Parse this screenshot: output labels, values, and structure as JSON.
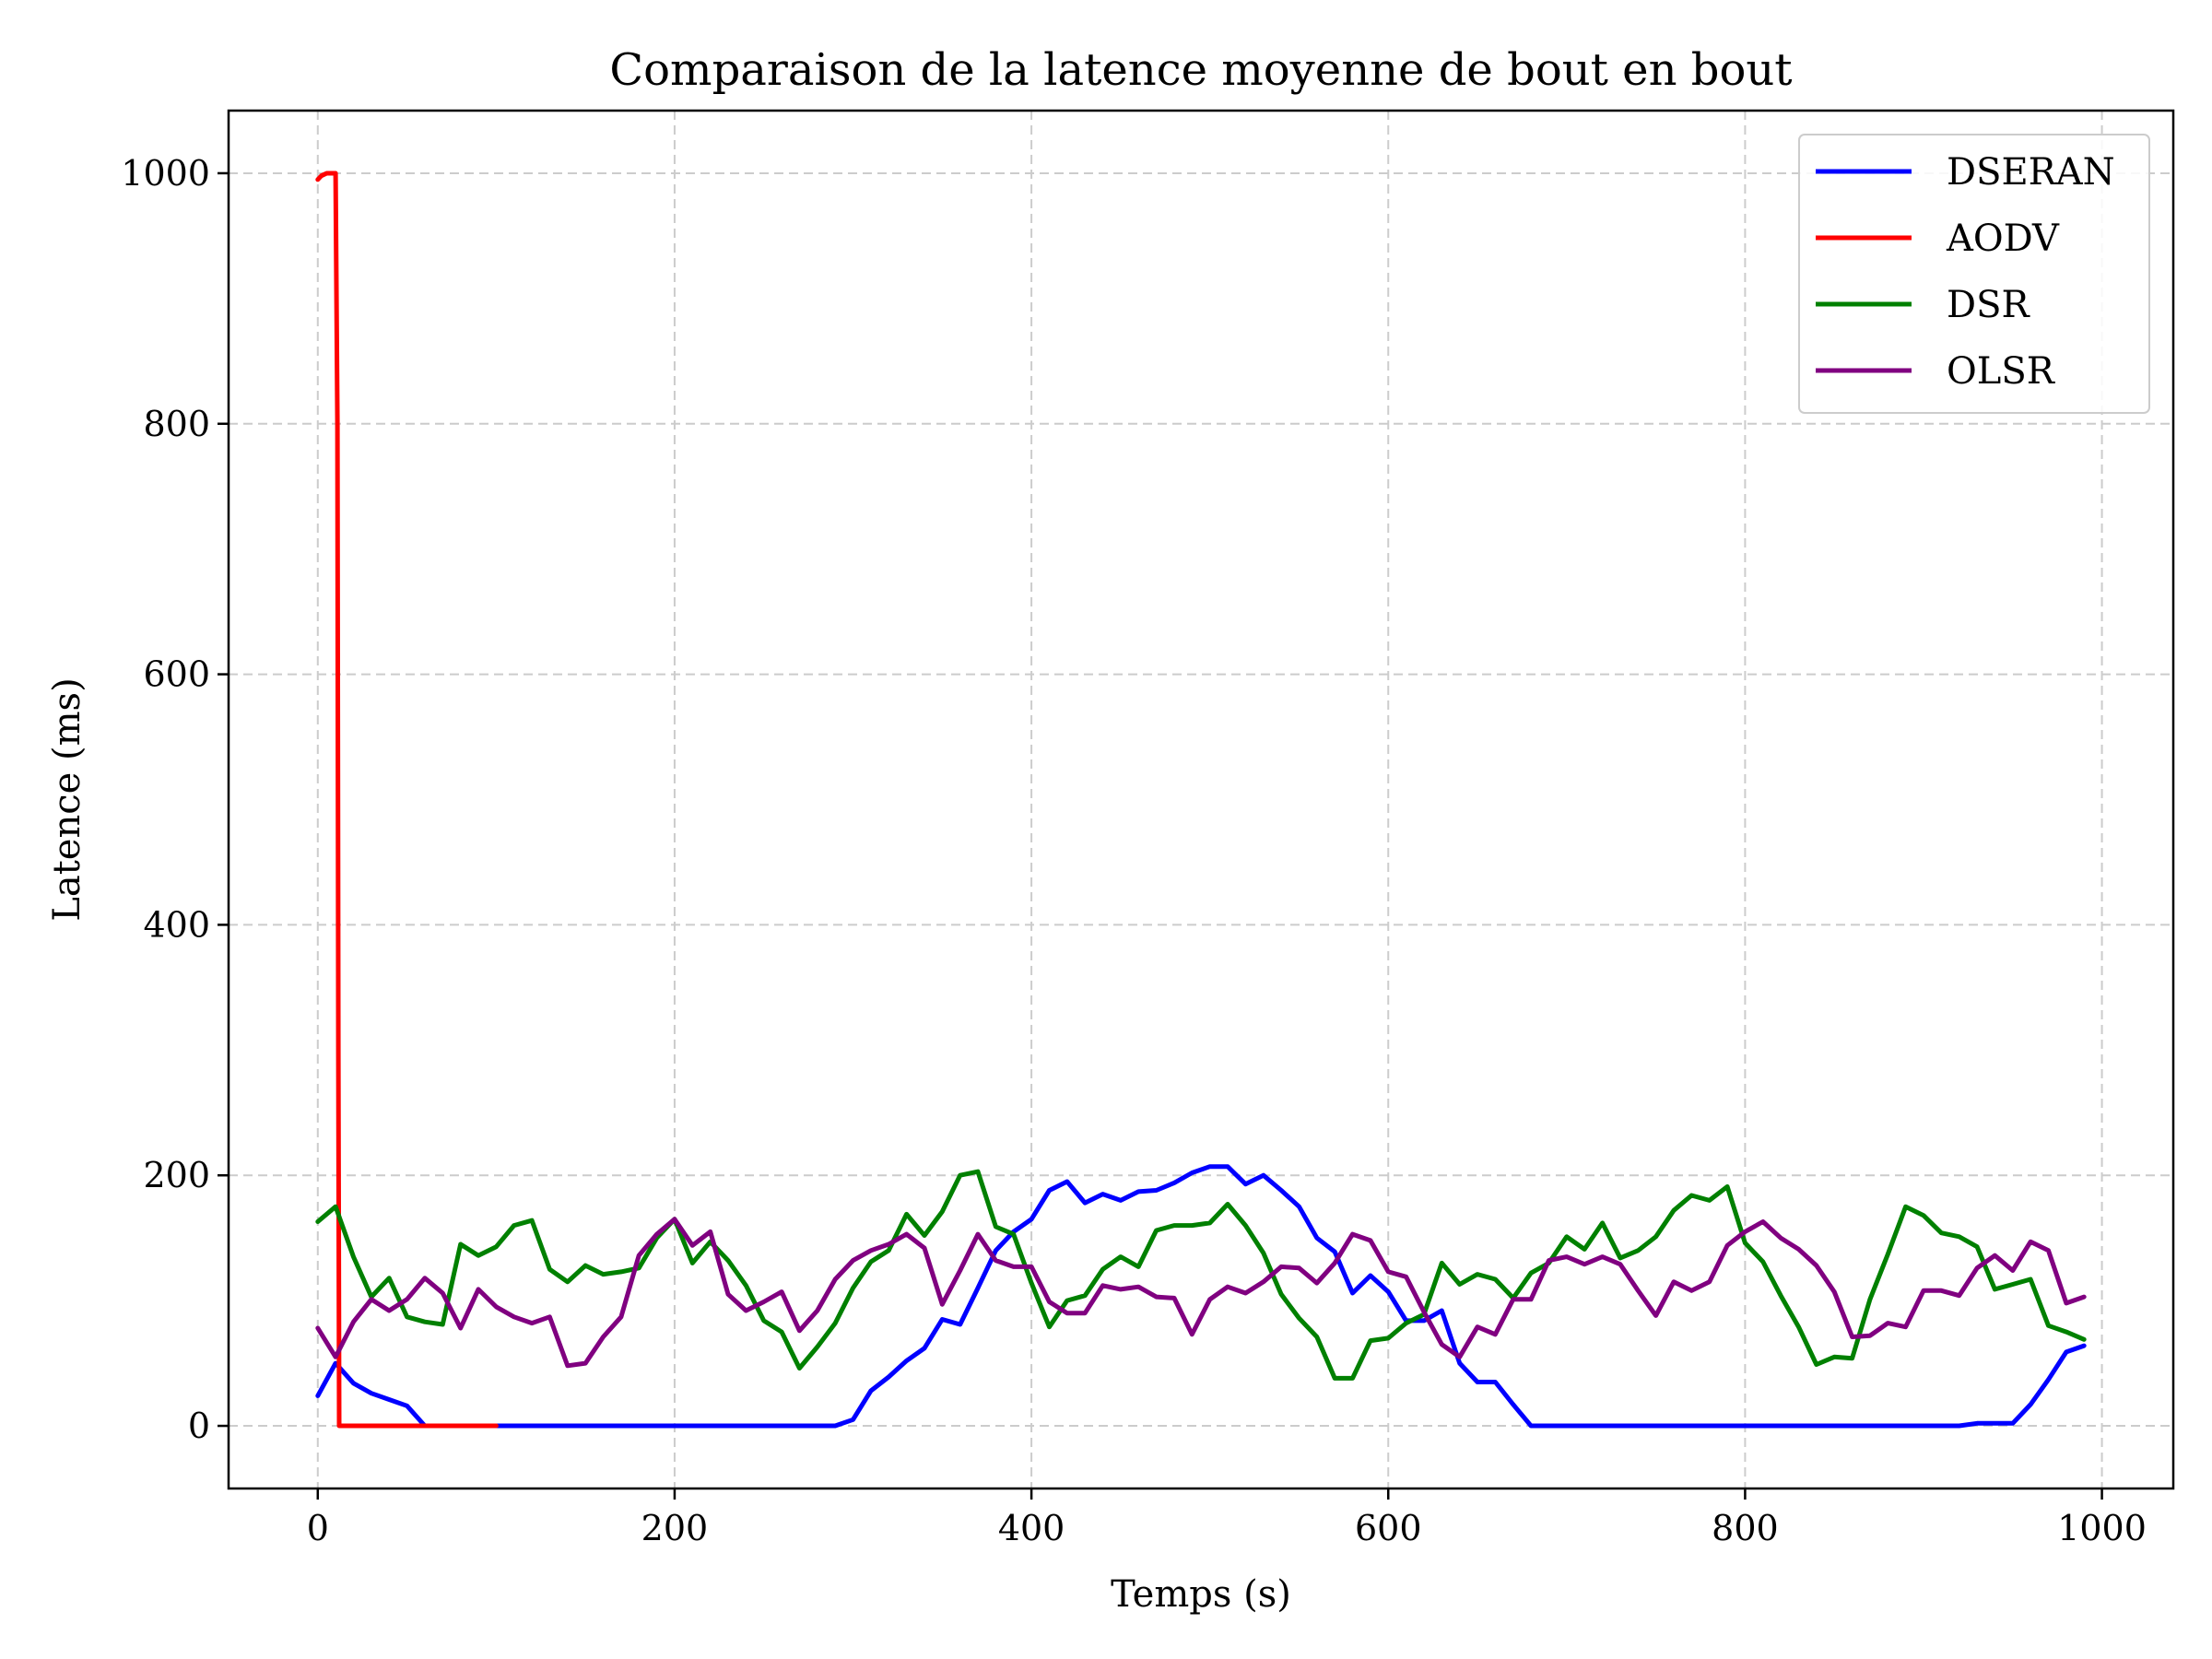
{
  "chart_data": {
    "type": "line",
    "title": "Comparaison de la latence moyenne de bout en bout",
    "xlabel": "Temps (s)",
    "ylabel": "Latence (ms)",
    "xlim": [
      -50,
      1040
    ],
    "ylim": [
      -50,
      1050
    ],
    "xticks": [
      0,
      200,
      400,
      600,
      800,
      1000
    ],
    "xtick_labels": [
      "0",
      "200",
      "400",
      "600",
      "800",
      "1000"
    ],
    "yticks": [
      0,
      200,
      400,
      600,
      800,
      1000
    ],
    "ytick_labels": [
      "0",
      "200",
      "400",
      "600",
      "800",
      "1000"
    ],
    "grid": true,
    "legend_position": "top-right",
    "x": [
      0,
      10,
      20,
      30,
      40,
      50,
      60,
      70,
      80,
      90,
      100,
      110,
      120,
      130,
      140,
      150,
      160,
      170,
      180,
      190,
      200,
      210,
      220,
      230,
      240,
      250,
      260,
      270,
      280,
      290,
      300,
      310,
      320,
      330,
      340,
      350,
      360,
      370,
      380,
      390,
      400,
      410,
      420,
      430,
      440,
      450,
      460,
      470,
      480,
      490,
      500,
      510,
      520,
      530,
      540,
      550,
      560,
      570,
      580,
      590,
      600,
      610,
      620,
      630,
      640,
      650,
      660,
      670,
      680,
      690,
      700,
      710,
      720,
      730,
      740,
      750,
      760,
      770,
      780,
      790,
      800,
      810,
      820,
      830,
      840,
      850,
      860,
      870,
      880,
      890,
      900,
      910,
      920,
      930,
      940,
      950,
      960,
      970,
      980,
      990
    ],
    "series": [
      {
        "name": "DSERAN",
        "color": "#0000ff",
        "values": [
          24,
          50,
          34,
          26,
          21,
          16,
          0,
          0,
          0,
          0,
          0,
          0,
          0,
          0,
          0,
          0,
          0,
          0,
          0,
          0,
          0,
          0,
          0,
          0,
          0,
          0,
          0,
          0,
          0,
          0,
          5,
          28,
          39,
          52,
          62,
          85,
          81,
          110,
          140,
          155,
          165,
          188,
          195,
          178,
          185,
          180,
          187,
          188,
          194,
          202,
          207,
          207,
          193,
          200,
          188,
          175,
          150,
          139,
          106,
          120,
          107,
          84,
          84,
          92,
          50,
          35,
          35,
          17,
          0,
          0,
          0,
          0,
          0,
          0,
          0,
          0,
          0,
          0,
          0,
          0,
          0,
          0,
          0,
          0,
          0,
          0,
          0,
          0,
          0,
          0,
          0,
          0,
          0,
          2,
          2,
          2,
          17,
          37,
          59,
          64
        ]
      },
      {
        "name": "AODV",
        "color": "#ff0000",
        "x": [
          0,
          2,
          5,
          10,
          11,
          11.5,
          12,
          20,
          30,
          40,
          50,
          60,
          70,
          80,
          90,
          100
        ],
        "values": [
          995,
          998,
          1000,
          1000,
          800,
          300,
          0,
          0,
          0,
          0,
          0,
          0,
          0,
          0,
          0,
          0
        ]
      },
      {
        "name": "DSR",
        "color": "#008000",
        "values": [
          163,
          175,
          135,
          103,
          118,
          87,
          83,
          81,
          145,
          136,
          143,
          160,
          164,
          125,
          115,
          128,
          121,
          123,
          126,
          150,
          165,
          130,
          147,
          132,
          112,
          84,
          75,
          46,
          63,
          82,
          110,
          131,
          140,
          169,
          152,
          171,
          200,
          203,
          159,
          153,
          114,
          79,
          100,
          104,
          125,
          135,
          127,
          156,
          160,
          160,
          162,
          177,
          160,
          138,
          105,
          86,
          71,
          38,
          38,
          68,
          70,
          82,
          89,
          130,
          113,
          121,
          117,
          102,
          122,
          130,
          151,
          141,
          162,
          134,
          140,
          151,
          172,
          184,
          180,
          191,
          146,
          131,
          104,
          79,
          49,
          55,
          54,
          101,
          137,
          175,
          168,
          154,
          151,
          143,
          109,
          113,
          117,
          80,
          75,
          69
        ]
      },
      {
        "name": "OLSR",
        "color": "#800080",
        "values": [
          78,
          55,
          83,
          101,
          92,
          101,
          118,
          106,
          78,
          109,
          95,
          87,
          82,
          87,
          48,
          50,
          71,
          87,
          136,
          153,
          165,
          144,
          155,
          105,
          92,
          99,
          107,
          76,
          92,
          117,
          132,
          140,
          145,
          153,
          142,
          97,
          124,
          153,
          132,
          127,
          127,
          99,
          90,
          90,
          112,
          109,
          111,
          103,
          102,
          73,
          101,
          111,
          106,
          115,
          127,
          126,
          114,
          130,
          153,
          148,
          123,
          119,
          91,
          65,
          55,
          79,
          73,
          101,
          101,
          132,
          135,
          129,
          135,
          129,
          108,
          88,
          115,
          108,
          115,
          144,
          155,
          163,
          150,
          141,
          128,
          107,
          71,
          72,
          82,
          79,
          108,
          108,
          104,
          126,
          136,
          124,
          147,
          140,
          98,
          103
        ]
      }
    ]
  }
}
